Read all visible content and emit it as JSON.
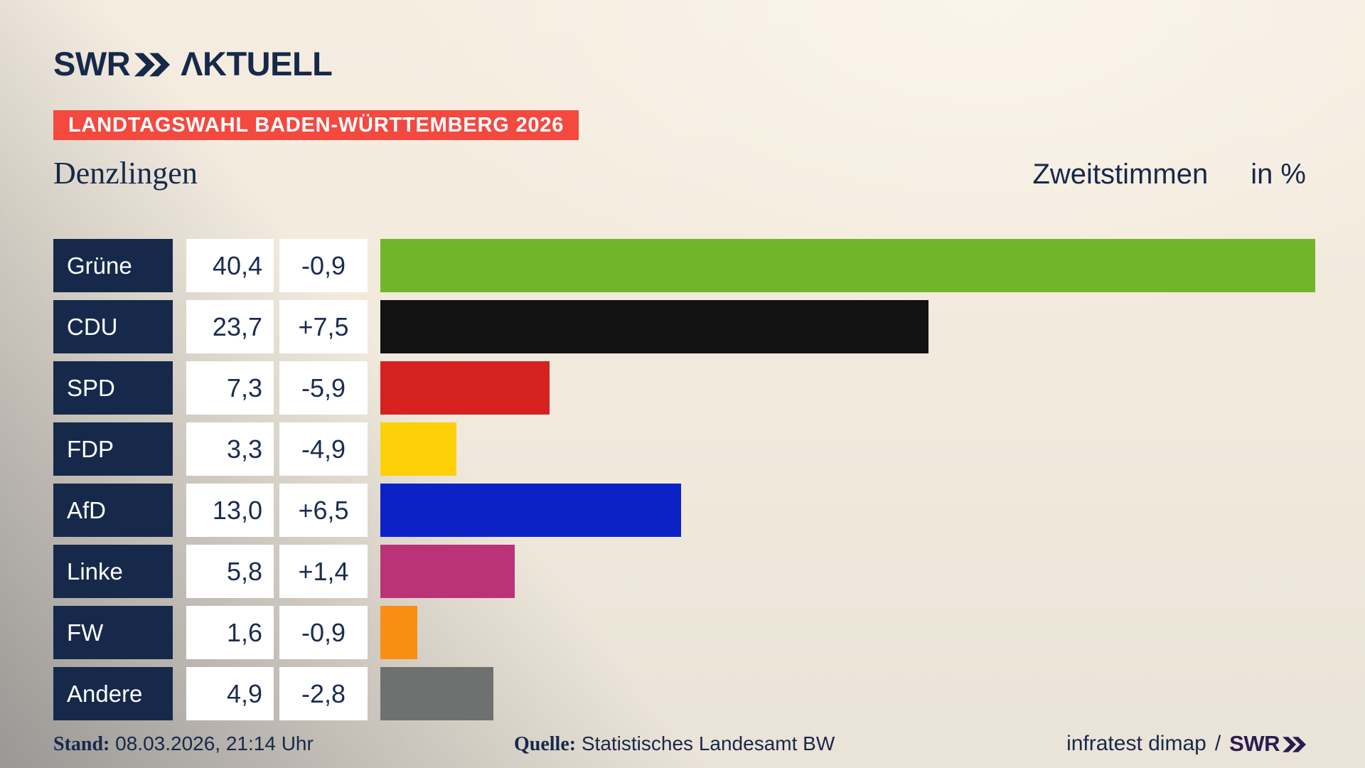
{
  "colors": {
    "navy": "#16294b",
    "banner_red": "#f3493f",
    "box_white": "#ffffff",
    "footer_logo_purple": "#2c1b52"
  },
  "header": {
    "logo_text": "SWR",
    "logo_suffix": "ΛKTUELL",
    "banner": "LANDTAGSWAHL BADEN-WÜRTTEMBERG 2026"
  },
  "title": {
    "municipality": "Denzlingen",
    "measure": "Zweitstimmen",
    "unit": "in %"
  },
  "chart_data": {
    "type": "bar",
    "orientation": "horizontal",
    "title": "Zweitstimmen in %",
    "region": "Denzlingen",
    "election": "Landtagswahl Baden-Württemberg 2026",
    "unit": "%",
    "value_axis_max": 40.4,
    "grid": false,
    "legend": false,
    "categories": [
      "Grüne",
      "CDU",
      "SPD",
      "FDP",
      "AfD",
      "Linke",
      "FW",
      "Andere"
    ],
    "rows": [
      {
        "party": "Grüne",
        "value": 40.4,
        "value_label": "40,4",
        "change": -0.9,
        "change_label": "-0,9",
        "color": "#73b528"
      },
      {
        "party": "CDU",
        "value": 23.7,
        "value_label": "23,7",
        "change": 7.5,
        "change_label": "+7,5",
        "color": "#121212"
      },
      {
        "party": "SPD",
        "value": 7.3,
        "value_label": "7,3",
        "change": -5.9,
        "change_label": "-5,9",
        "color": "#d52220"
      },
      {
        "party": "FDP",
        "value": 3.3,
        "value_label": "3,3",
        "change": -4.9,
        "change_label": "-4,9",
        "color": "#fdd008"
      },
      {
        "party": "AfD",
        "value": 13.0,
        "value_label": "13,0",
        "change": 6.5,
        "change_label": "+6,5",
        "color": "#0c22c7"
      },
      {
        "party": "Linke",
        "value": 5.8,
        "value_label": "5,8",
        "change": 1.4,
        "change_label": "+1,4",
        "color": "#ba3277"
      },
      {
        "party": "FW",
        "value": 1.6,
        "value_label": "1,6",
        "change": -0.9,
        "change_label": "-0,9",
        "color": "#f98e12"
      },
      {
        "party": "Andere",
        "value": 4.9,
        "value_label": "4,9",
        "change": -2.8,
        "change_label": "-2,8",
        "color": "#6f7170"
      }
    ]
  },
  "footer": {
    "stand_label": "Stand:",
    "stand_value": "08.03.2026, 21:14 Uhr",
    "source_label": "Quelle:",
    "source_value": "Statistisches Landesamt BW",
    "credit": "infratest dimap",
    "credit_separator": "/",
    "credit_logo": "SWR"
  }
}
